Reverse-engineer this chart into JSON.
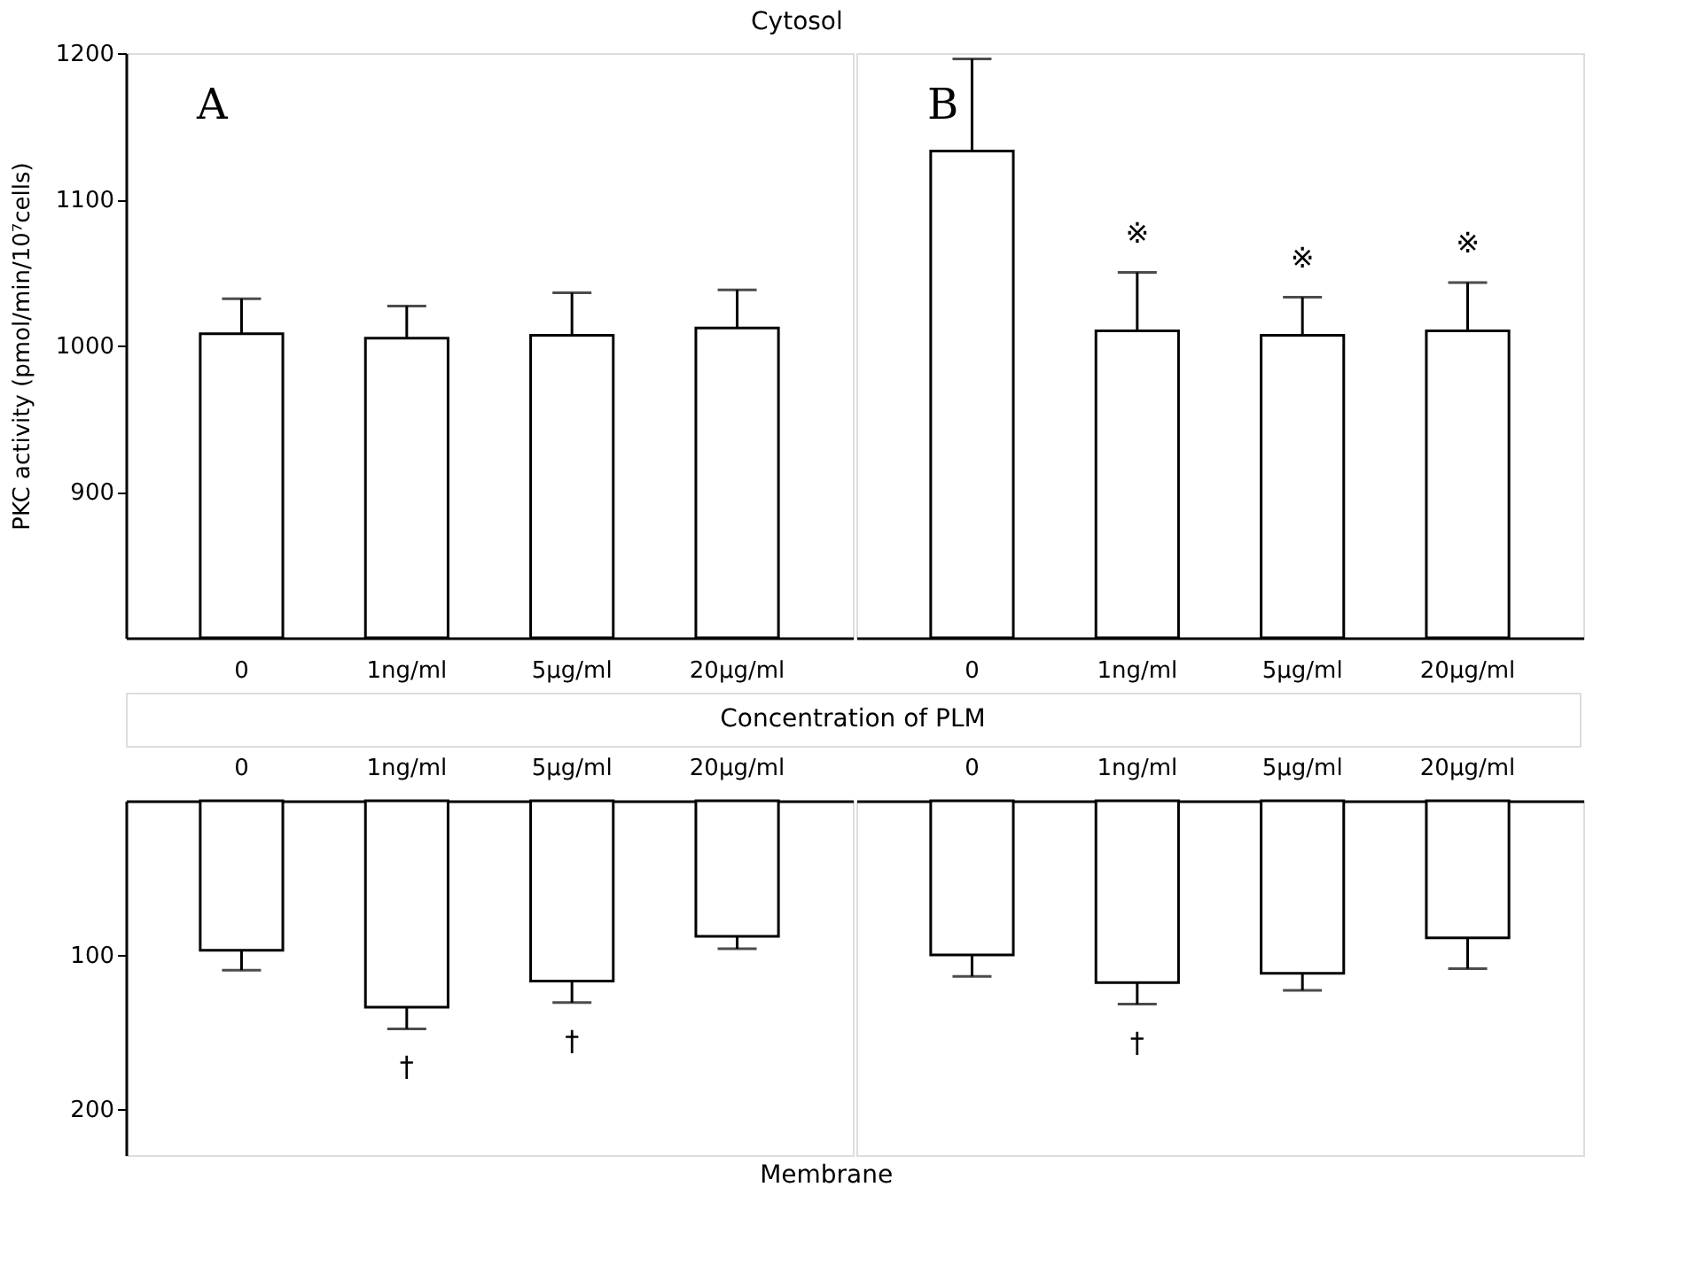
{
  "chart_data": [
    {
      "type": "bar",
      "title": "Cytosol",
      "xlabel": "Concentration of PLM",
      "ylabel": "PKC activity (pmol/min/10⁷cells)",
      "categories": [
        "0",
        "1ng/ml",
        "5μg/ml",
        "20μg/ml"
      ],
      "values": [
        1008,
        1005,
        1007,
        1012
      ],
      "errors": [
        24,
        22,
        29,
        26
      ],
      "color": "#ffffff",
      "ylim": [
        800,
        1200
      ],
      "yticks": [
        900,
        1000,
        1100,
        1200
      ],
      "annotations": [
        "A"
      ]
    },
    {
      "type": "bar",
      "categories": [
        "0",
        "1ng/ml",
        "5μg/ml",
        "20μg/ml"
      ],
      "values": [
        1133,
        1010,
        1007,
        1010
      ],
      "errors": [
        63,
        40,
        26,
        33
      ],
      "color": "#ffffff",
      "ylim": [
        800,
        1200
      ],
      "tick_labels": "x",
      "annotations": [
        "B",
        "※",
        "※",
        "※"
      ]
    },
    {
      "type": "bar",
      "title": "Membrane",
      "categories": [
        "0",
        "1ng/ml",
        "5μg/ml",
        "20μg/ml"
      ],
      "values": [
        97,
        134,
        117,
        88
      ],
      "errors": [
        13,
        14,
        14,
        8
      ],
      "color": "#ffffff",
      "ylim": [
        230,
        0
      ],
      "yticks": [
        100,
        200
      ],
      "annotations": [
        "†",
        "†"
      ]
    },
    {
      "type": "bar",
      "categories": [
        "0",
        "1ng/ml",
        "5μg/ml",
        "20μg/ml"
      ],
      "values": [
        100,
        118,
        112,
        89
      ],
      "errors": [
        14,
        14,
        11,
        20
      ],
      "color": "#ffffff",
      "ylim": [
        230,
        0
      ],
      "tick_labels": "x",
      "annotations": [
        "†"
      ]
    }
  ]
}
